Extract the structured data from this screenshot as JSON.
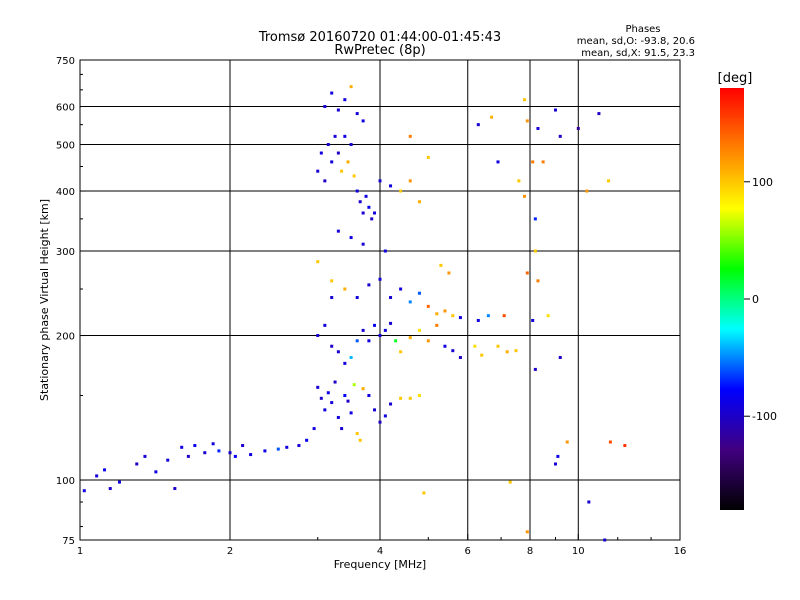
{
  "chart_data": {
    "type": "scatter",
    "title": "Tromsø 20160720 01:44:00-01:45:43",
    "subtitle": "RwPretec (8p)",
    "xlabel": "Frequency [MHz]",
    "ylabel": "Stationary phase Virtual Height [km]",
    "x_scale": "log",
    "y_scale": "log",
    "xlim": [
      1,
      16
    ],
    "ylim": [
      75,
      750
    ],
    "x_ticks": [
      1,
      2,
      4,
      6,
      8,
      10,
      16
    ],
    "y_ticks": [
      75,
      100,
      200,
      300,
      400,
      500,
      600,
      750
    ],
    "grid": true,
    "stats": {
      "heading": "Phases",
      "line_o": "mean, sd,O: -93.8, 20.6",
      "line_x": "mean, sd,X:  91.5, 23.3"
    },
    "colorbar": {
      "label": "[deg]",
      "range": [
        -180,
        180
      ],
      "ticks": [
        100,
        0,
        -100
      ],
      "colors": [
        "#ff0000",
        "#ff8000",
        "#ffff00",
        "#00ff00",
        "#00ffff",
        "#0000ff",
        "#400080",
        "#000000"
      ]
    },
    "points": [
      [
        1.02,
        95,
        -90
      ],
      [
        1.08,
        102,
        -95
      ],
      [
        1.12,
        105,
        -85
      ],
      [
        1.15,
        96,
        -100
      ],
      [
        1.2,
        99,
        -90
      ],
      [
        1.3,
        108,
        -100
      ],
      [
        1.35,
        112,
        -95
      ],
      [
        1.42,
        104,
        -88
      ],
      [
        1.5,
        110,
        -92
      ],
      [
        1.55,
        96,
        -100
      ],
      [
        1.6,
        117,
        -90
      ],
      [
        1.65,
        112,
        -98
      ],
      [
        1.7,
        118,
        -85
      ],
      [
        1.78,
        114,
        -95
      ],
      [
        1.85,
        119,
        -90
      ],
      [
        1.9,
        115,
        -70
      ],
      [
        2.0,
        114,
        -95
      ],
      [
        2.05,
        112,
        -80
      ],
      [
        2.12,
        118,
        -100
      ],
      [
        2.2,
        113,
        -90
      ],
      [
        2.35,
        115,
        -85
      ],
      [
        2.5,
        116,
        -60
      ],
      [
        2.6,
        117,
        -90
      ],
      [
        2.75,
        118,
        -95
      ],
      [
        2.85,
        121,
        -80
      ],
      [
        2.95,
        128,
        -90
      ],
      [
        3.0,
        156,
        -95
      ],
      [
        3.05,
        148,
        -100
      ],
      [
        3.1,
        140,
        -90
      ],
      [
        3.15,
        152,
        -85
      ],
      [
        3.2,
        145,
        -95
      ],
      [
        3.25,
        160,
        -100
      ],
      [
        3.3,
        135,
        -90
      ],
      [
        3.35,
        128,
        -95
      ],
      [
        3.4,
        150,
        -80
      ],
      [
        3.45,
        146,
        -100
      ],
      [
        3.5,
        138,
        -90
      ],
      [
        3.55,
        158,
        60
      ],
      [
        3.6,
        125,
        100
      ],
      [
        3.65,
        121,
        100
      ],
      [
        3.7,
        155,
        110
      ],
      [
        3.8,
        150,
        -90
      ],
      [
        3.9,
        140,
        -95
      ],
      [
        4.0,
        132,
        -100
      ],
      [
        4.1,
        136,
        -90
      ],
      [
        4.2,
        144,
        -95
      ],
      [
        4.4,
        148,
        100
      ],
      [
        4.6,
        148,
        100
      ],
      [
        4.8,
        150,
        90
      ],
      [
        3.0,
        200,
        -95
      ],
      [
        3.1,
        210,
        -90
      ],
      [
        3.2,
        190,
        -100
      ],
      [
        3.3,
        185,
        -95
      ],
      [
        3.4,
        175,
        -90
      ],
      [
        3.5,
        180,
        -40
      ],
      [
        3.6,
        195,
        -60
      ],
      [
        3.7,
        205,
        -95
      ],
      [
        3.8,
        195,
        -90
      ],
      [
        3.9,
        210,
        -85
      ],
      [
        4.0,
        200,
        -95
      ],
      [
        4.1,
        205,
        -90
      ],
      [
        4.2,
        212,
        -95
      ],
      [
        4.3,
        195,
        20
      ],
      [
        4.4,
        185,
        100
      ],
      [
        4.6,
        198,
        110
      ],
      [
        4.8,
        205,
        90
      ],
      [
        5.0,
        195,
        120
      ],
      [
        5.2,
        210,
        130
      ],
      [
        5.4,
        190,
        -90
      ],
      [
        5.6,
        186,
        -95
      ],
      [
        5.8,
        180,
        -100
      ],
      [
        5.0,
        230,
        140
      ],
      [
        5.2,
        222,
        110
      ],
      [
        5.4,
        225,
        120
      ],
      [
        5.6,
        220,
        100
      ],
      [
        5.8,
        218,
        -90
      ],
      [
        4.2,
        240,
        -95
      ],
      [
        4.4,
        250,
        -90
      ],
      [
        4.6,
        235,
        -50
      ],
      [
        4.8,
        245,
        -60
      ],
      [
        3.2,
        260,
        100
      ],
      [
        3.4,
        250,
        110
      ],
      [
        3.6,
        240,
        -90
      ],
      [
        3.8,
        255,
        -95
      ],
      [
        4.0,
        262,
        -90
      ],
      [
        5.3,
        280,
        100
      ],
      [
        5.5,
        270,
        120
      ],
      [
        3.0,
        285,
        100
      ],
      [
        3.0,
        440,
        -95
      ],
      [
        3.05,
        480,
        -90
      ],
      [
        3.1,
        420,
        -100
      ],
      [
        3.15,
        500,
        -95
      ],
      [
        3.2,
        460,
        -90
      ],
      [
        3.25,
        520,
        -95
      ],
      [
        3.3,
        480,
        -100
      ],
      [
        3.35,
        440,
        100
      ],
      [
        3.4,
        520,
        -90
      ],
      [
        3.45,
        460,
        110
      ],
      [
        3.5,
        500,
        -95
      ],
      [
        3.55,
        430,
        100
      ],
      [
        3.6,
        400,
        -90
      ],
      [
        3.65,
        380,
        -100
      ],
      [
        3.7,
        360,
        -95
      ],
      [
        3.75,
        390,
        -90
      ],
      [
        3.8,
        370,
        -85
      ],
      [
        3.85,
        350,
        -100
      ],
      [
        3.9,
        360,
        -90
      ],
      [
        3.1,
        600,
        -95
      ],
      [
        3.2,
        640,
        -90
      ],
      [
        3.3,
        590,
        -95
      ],
      [
        3.4,
        620,
        -90
      ],
      [
        3.5,
        660,
        110
      ],
      [
        3.6,
        580,
        -95
      ],
      [
        3.7,
        560,
        -90
      ],
      [
        4.0,
        420,
        -95
      ],
      [
        4.2,
        410,
        -90
      ],
      [
        4.4,
        400,
        100
      ],
      [
        4.6,
        420,
        120
      ],
      [
        4.8,
        380,
        110
      ],
      [
        5.0,
        470,
        100
      ],
      [
        4.6,
        520,
        130
      ],
      [
        3.3,
        330,
        -95
      ],
      [
        3.5,
        320,
        -90
      ],
      [
        3.7,
        310,
        -95
      ],
      [
        4.1,
        300,
        -90
      ],
      [
        3.2,
        240,
        -95
      ],
      [
        6.3,
        215,
        -90
      ],
      [
        6.6,
        220,
        -50
      ],
      [
        6.9,
        190,
        100
      ],
      [
        7.2,
        185,
        110
      ],
      [
        7.5,
        186,
        100
      ],
      [
        6.2,
        190,
        90
      ],
      [
        6.4,
        182,
        100
      ],
      [
        7.1,
        220,
        150
      ],
      [
        8.1,
        215,
        -90
      ],
      [
        6.3,
        550,
        -95
      ],
      [
        6.7,
        570,
        110
      ],
      [
        6.9,
        460,
        -90
      ],
      [
        7.8,
        620,
        100
      ],
      [
        7.9,
        560,
        120
      ],
      [
        8.1,
        460,
        130
      ],
      [
        8.3,
        540,
        -95
      ],
      [
        7.6,
        420,
        100
      ],
      [
        7.8,
        390,
        120
      ],
      [
        8.2,
        350,
        -70
      ],
      [
        8.3,
        260,
        130
      ],
      [
        7.9,
        270,
        140
      ],
      [
        8.2,
        300,
        100
      ],
      [
        9.0,
        590,
        -95
      ],
      [
        9.2,
        520,
        -100
      ],
      [
        10.0,
        540,
        -120
      ],
      [
        11.0,
        580,
        -100
      ],
      [
        11.5,
        420,
        100
      ],
      [
        10.4,
        400,
        120
      ],
      [
        8.7,
        220,
        90
      ],
      [
        8.2,
        170,
        -100
      ],
      [
        8.5,
        460,
        130
      ],
      [
        9.0,
        108,
        -95
      ],
      [
        9.1,
        112,
        -90
      ],
      [
        9.5,
        120,
        120
      ],
      [
        10.5,
        90,
        -95
      ],
      [
        11.6,
        120,
        150
      ],
      [
        7.3,
        99,
        100
      ],
      [
        7.9,
        78,
        120
      ],
      [
        9.2,
        180,
        -100
      ],
      [
        11.3,
        75,
        -95
      ],
      [
        12.4,
        118,
        160
      ],
      [
        4.9,
        94,
        100
      ]
    ]
  }
}
